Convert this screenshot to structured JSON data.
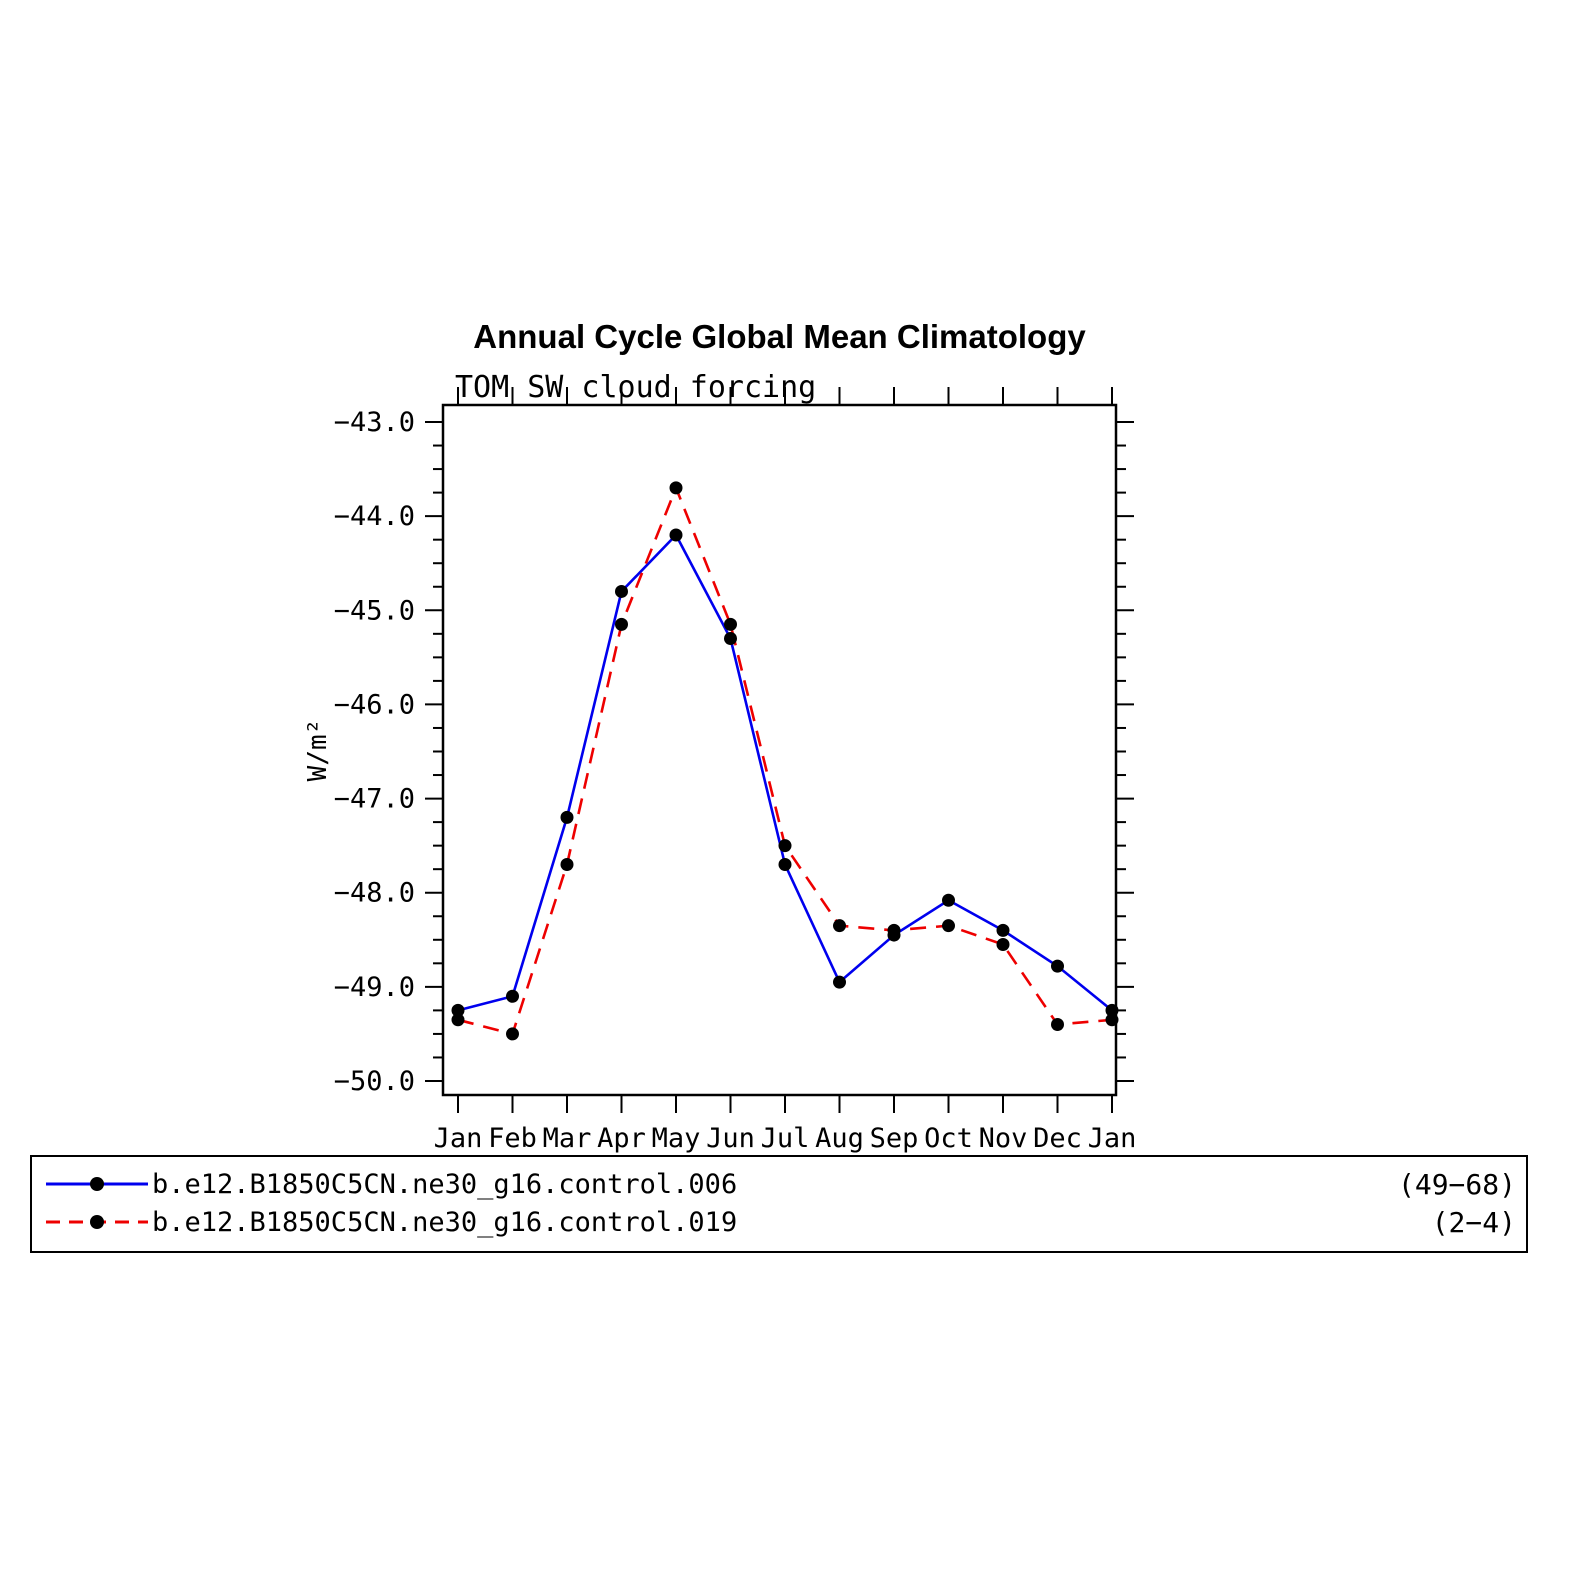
{
  "title": "Annual Cycle Global Mean Climatology",
  "subtitle": "TOM SW cloud forcing",
  "chart_data": {
    "type": "line",
    "title": "Annual Cycle Global Mean Climatology",
    "subtitle": "TOM SW cloud forcing",
    "xlabel": "",
    "ylabel": "W/m²",
    "categories": [
      "Jan",
      "Feb",
      "Mar",
      "Apr",
      "May",
      "Jun",
      "Jul",
      "Aug",
      "Sep",
      "Oct",
      "Nov",
      "Dec",
      "Jan"
    ],
    "ylim": [
      -50.0,
      -43.0
    ],
    "y_major_values": [
      -43.0,
      -44.0,
      -45.0,
      -46.0,
      -47.0,
      -48.0,
      -49.0,
      -50.0
    ],
    "y_major_labels": [
      "−43.0",
      "−44.0",
      "−45.0",
      "−46.0",
      "−47.0",
      "−48.0",
      "−49.0",
      "−50.0"
    ],
    "y_minor_step": 0.25,
    "grid": false,
    "legend_position": "bottom-box",
    "axis_color": "#000000",
    "marker_color": "#000000",
    "series": [
      {
        "name": "b.e12.B1850C5CN.ne30_g16.control.006",
        "range_label": "(49−68)",
        "color": "#0000ee",
        "line_style": "solid",
        "values": [
          -49.25,
          -49.1,
          -47.2,
          -44.8,
          -44.2,
          -45.3,
          -47.7,
          -48.95,
          -48.45,
          -48.08,
          -48.4,
          -48.78,
          -49.25
        ]
      },
      {
        "name": "b.e12.B1850C5CN.ne30_g16.control.019",
        "range_label": "(2−4)",
        "color": "#ee0000",
        "line_style": "dashed",
        "values": [
          -49.35,
          -49.5,
          -47.7,
          -45.15,
          -43.7,
          -45.15,
          -47.5,
          -48.35,
          -48.4,
          -48.35,
          -48.55,
          -49.4,
          -49.35
        ]
      }
    ]
  }
}
